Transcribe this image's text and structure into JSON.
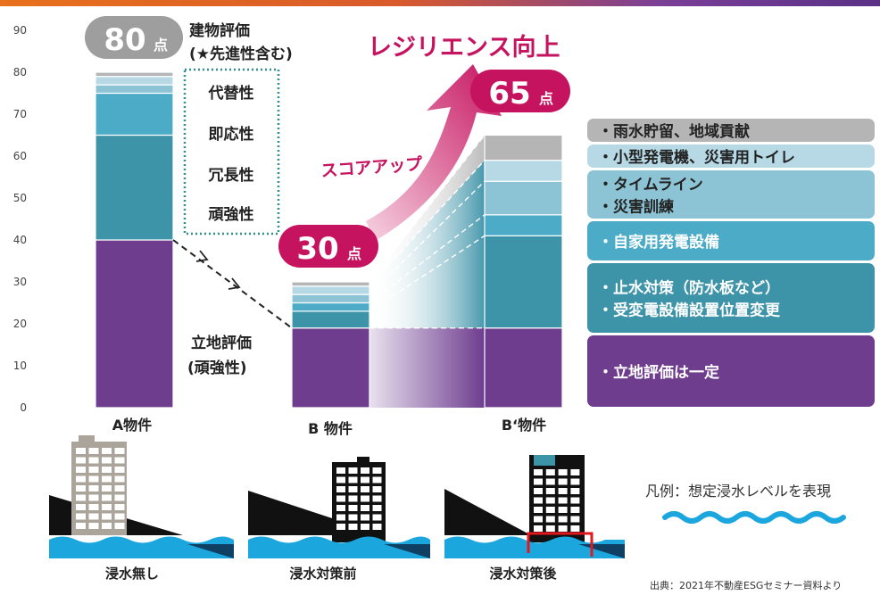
{
  "chart_data": {
    "type": "bar",
    "stacked": true,
    "categories": [
      "A物件",
      "B 物件",
      "B‘物件"
    ],
    "y_ticks": [
      0,
      10,
      20,
      30,
      40,
      50,
      60,
      70,
      80,
      90
    ],
    "ylim": [
      0,
      90
    ],
    "grid": false,
    "series": [
      {
        "name": "・立地評価は一定",
        "values": [
          40,
          19,
          19
        ]
      },
      {
        "name": "・止水対策（防水板など）・受変電設備設置位置変更",
        "values": [
          25,
          4,
          22
        ]
      },
      {
        "name": "・自家用発電設備",
        "values": [
          10,
          2,
          5
        ]
      },
      {
        "name": "・タイムライン・災害訓練",
        "values": [
          2,
          2,
          8
        ]
      },
      {
        "name": "・小型発電機、災害用トイレ",
        "values": [
          2,
          2,
          5
        ]
      },
      {
        "name": "・雨水貯留、地域貢献",
        "values": [
          1,
          1,
          6
        ]
      }
    ],
    "totals": {
      "a": "80",
      "b": "30",
      "b2": "65",
      "unit": "点"
    },
    "annotations": {
      "building_eval_1": "建物評価",
      "building_eval_2": "(★先進性含む)",
      "criteria": [
        "代替性",
        "即応性",
        "冗長性",
        "頑強性"
      ],
      "location_eval_1": "立地評価",
      "location_eval_2": "(頑強性)",
      "resilience": "レジリエンス向上",
      "score_up": "スコアアップ"
    },
    "legend_placement": "right"
  },
  "legend_lines": [
    [
      "・雨水貯留、地域貢献"
    ],
    [
      "・小型発電機、災害用トイレ"
    ],
    [
      "・タイムライン",
      "・災害訓練"
    ],
    [
      "・自家用発電設備"
    ],
    [
      "・止水対策（防水板など）",
      "・受変電設備設置位置変更"
    ],
    [
      "・立地評価は一定"
    ]
  ],
  "colors": {
    "purple": "#6e3d8e",
    "teal_dark": "#3d93a8",
    "teal_mid": "#4cabc6",
    "teal_light": "#8cc4d6",
    "teal_pale": "#b7d9e5",
    "gray": "#b5b5b5",
    "pill_gray": "#9e9e9e",
    "pill_magenta": "#c6135f",
    "dotted_box": "#2f8f8a",
    "water": "#1ba6de"
  },
  "illustrations": {
    "captions": [
      "浸水無し",
      "浸水対策前",
      "浸水対策後"
    ],
    "legend_note": "凡例：想定浸水レベルを表現"
  },
  "source": "出典：2021年不動産ESGセミナー資料より"
}
